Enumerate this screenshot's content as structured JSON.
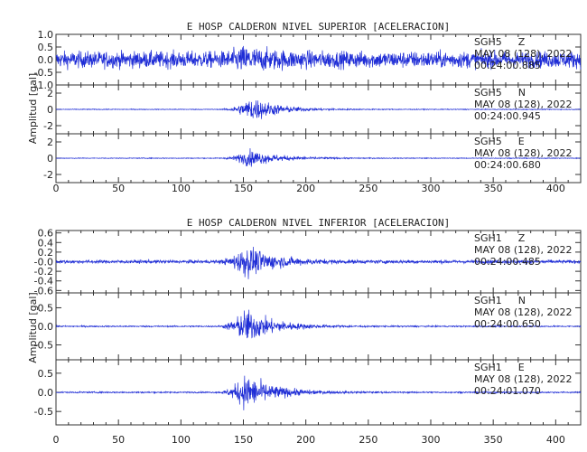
{
  "chart_data": [
    {
      "type": "line",
      "title": "E HOSP CALDERON NIVEL SUPERIOR [ACELERACION]",
      "ylabel": "Amplitud [gal]",
      "xlabel": "",
      "xlim": [
        0,
        420
      ],
      "xticks": [
        0,
        50,
        100,
        150,
        200,
        250,
        300,
        350,
        400
      ],
      "color": "#1f2dd6",
      "traces": [
        {
          "station": "SGH5",
          "component": "Z",
          "date": "MAY 08 (128), 2022",
          "time": "00:24:00.885",
          "ylim": [
            -1.0,
            1.0
          ],
          "yticks": [
            1.0,
            0.5,
            0.0,
            -0.5,
            -1.0
          ],
          "ytick_labels": [
            "1.0",
            "0.5",
            "0.0",
            "-0.5",
            "-1.0"
          ],
          "noise": 0.55,
          "peak": 0.95,
          "onset": 128,
          "peak_t": 150,
          "decay": 25
        },
        {
          "station": "SGH5",
          "component": "N",
          "date": "MAY 08 (128), 2022",
          "time": "00:24:00.945",
          "ylim": [
            -3,
            3
          ],
          "yticks": [
            2,
            0,
            -2
          ],
          "ytick_labels": [
            "2",
            "0",
            "-2"
          ],
          "noise": 0.08,
          "peak": 2.6,
          "onset": 130,
          "peak_t": 158,
          "decay": 20
        },
        {
          "station": "SGH5",
          "component": "E",
          "date": "MAY 08 (128), 2022",
          "time": "00:24:00.680",
          "ylim": [
            -3,
            3
          ],
          "yticks": [
            2,
            0,
            -2
          ],
          "ytick_labels": [
            "2",
            "0",
            "-2"
          ],
          "noise": 0.08,
          "peak": 1.8,
          "onset": 130,
          "peak_t": 155,
          "decay": 22
        }
      ]
    },
    {
      "type": "line",
      "title": "E HOSP CALDERON NIVEL INFERIOR [ACELERACION]",
      "ylabel": "Amplitud [gal]",
      "xlabel": "",
      "xlim": [
        0,
        420
      ],
      "xticks": [
        0,
        50,
        100,
        150,
        200,
        250,
        300,
        350,
        400
      ],
      "color": "#1f2dd6",
      "traces": [
        {
          "station": "SGH1",
          "component": "Z",
          "date": "MAY 08 (128), 2022",
          "time": "00:24:00.485",
          "ylim": [
            -0.65,
            0.65
          ],
          "yticks": [
            0.6,
            0.4,
            0.2,
            0.0,
            -0.2,
            -0.4,
            -0.6
          ],
          "ytick_labels": [
            "0.6",
            "0.4",
            "0.2",
            "-0.0",
            "-0.2",
            "-0.4",
            "-0.6"
          ],
          "noise": 0.06,
          "peak": 0.58,
          "onset": 128,
          "peak_t": 152,
          "decay": 22
        },
        {
          "station": "SGH1",
          "component": "N",
          "date": "MAY 08 (128), 2022",
          "time": "00:24:00.650",
          "ylim": [
            -0.9,
            0.9
          ],
          "yticks": [
            0.5,
            0.0,
            -0.5
          ],
          "ytick_labels": [
            "0.5",
            "0.0",
            "-0.5"
          ],
          "noise": 0.03,
          "peak": 0.8,
          "onset": 128,
          "peak_t": 152,
          "decay": 22
        },
        {
          "station": "SGH1",
          "component": "E",
          "date": "MAY 08 (128), 2022",
          "time": "00:24:01.070",
          "ylim": [
            -0.85,
            0.85
          ],
          "yticks": [
            0.5,
            0.0,
            -0.5
          ],
          "ytick_labels": [
            "0.5",
            "0.0",
            "-0.5"
          ],
          "noise": 0.03,
          "peak": 0.8,
          "onset": 128,
          "peak_t": 152,
          "decay": 22
        }
      ]
    }
  ]
}
